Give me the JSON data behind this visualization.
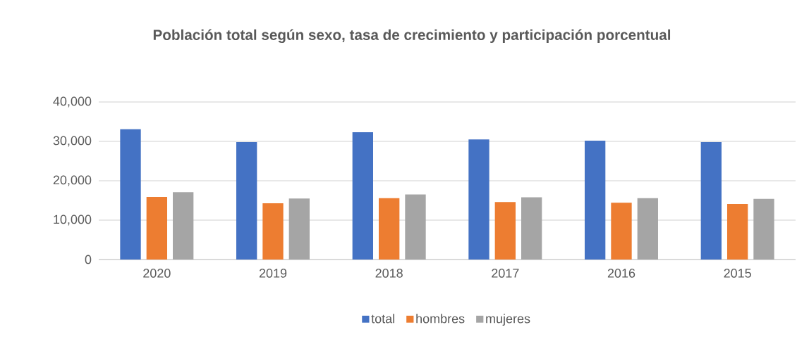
{
  "chart_data": {
    "type": "bar",
    "title": "Población total según sexo, tasa de crecimiento y participación porcentual",
    "categories": [
      "2020",
      "2019",
      "2018",
      "2017",
      "2016",
      "2015"
    ],
    "series": [
      {
        "name": "total",
        "color": "#4472c4",
        "values": [
          33100,
          29800,
          32300,
          30500,
          30200,
          29800
        ]
      },
      {
        "name": "hombres",
        "color": "#ed7d31",
        "values": [
          15900,
          14300,
          15600,
          14600,
          14400,
          14100
        ]
      },
      {
        "name": "mujeres",
        "color": "#a5a5a5",
        "values": [
          17100,
          15500,
          16500,
          15800,
          15600,
          15400
        ]
      }
    ],
    "ylim": [
      0,
      40000
    ],
    "yticks": [
      0,
      {
        "value": 10000,
        "label": "10,000"
      },
      {
        "value": 20000,
        "label": "20,000"
      },
      {
        "value": 30000,
        "label": "30,000"
      },
      {
        "value": 40000,
        "label": "40,000"
      }
    ],
    "grid": "y",
    "legend": "bottom"
  }
}
